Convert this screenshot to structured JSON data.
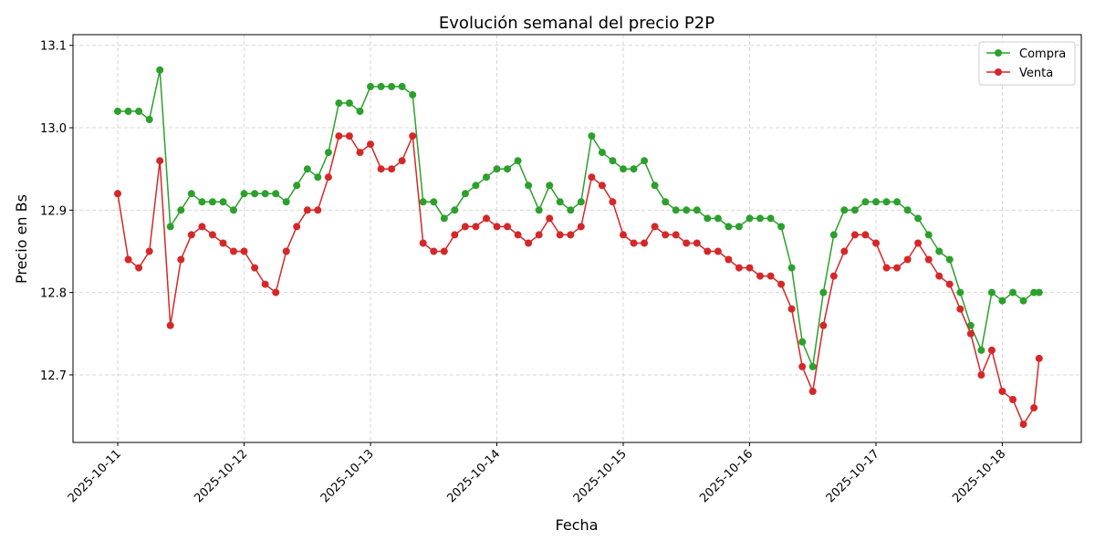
{
  "chart_data": {
    "type": "line",
    "title": "Evolución semanal del precio P2P",
    "xlabel": "Fecha",
    "ylabel": "Precio en Bs",
    "xlim": [
      "2025-10-10 15:30",
      "2025-10-18 15:00"
    ],
    "ylim": [
      12.618,
      13.113
    ],
    "x_ticks": [
      "2025-10-11",
      "2025-10-12",
      "2025-10-13",
      "2025-10-14",
      "2025-10-15",
      "2025-10-16",
      "2025-10-17",
      "2025-10-18"
    ],
    "y_ticks": [
      "12.7",
      "12.8",
      "12.9",
      "13.0",
      "13.1"
    ],
    "grid": true,
    "legend": "top-right",
    "x": [
      "2025-10-11 00:00",
      "2025-10-11 02:00",
      "2025-10-11 04:00",
      "2025-10-11 06:00",
      "2025-10-11 08:00",
      "2025-10-11 10:00",
      "2025-10-11 12:00",
      "2025-10-11 14:00",
      "2025-10-11 16:00",
      "2025-10-11 18:00",
      "2025-10-11 20:00",
      "2025-10-11 22:00",
      "2025-10-12 00:00",
      "2025-10-12 02:00",
      "2025-10-12 04:00",
      "2025-10-12 06:00",
      "2025-10-12 08:00",
      "2025-10-12 10:00",
      "2025-10-12 12:00",
      "2025-10-12 14:00",
      "2025-10-12 16:00",
      "2025-10-12 18:00",
      "2025-10-12 20:00",
      "2025-10-12 22:00",
      "2025-10-13 00:00",
      "2025-10-13 02:00",
      "2025-10-13 04:00",
      "2025-10-13 06:00",
      "2025-10-13 08:00",
      "2025-10-13 10:00",
      "2025-10-13 12:00",
      "2025-10-13 14:00",
      "2025-10-13 16:00",
      "2025-10-13 18:00",
      "2025-10-13 20:00",
      "2025-10-13 22:00",
      "2025-10-14 00:00",
      "2025-10-14 02:00",
      "2025-10-14 04:00",
      "2025-10-14 06:00",
      "2025-10-14 08:00",
      "2025-10-14 10:00",
      "2025-10-14 12:00",
      "2025-10-14 14:00",
      "2025-10-14 16:00",
      "2025-10-14 18:00",
      "2025-10-14 20:00",
      "2025-10-14 22:00",
      "2025-10-15 00:00",
      "2025-10-15 02:00",
      "2025-10-15 04:00",
      "2025-10-15 06:00",
      "2025-10-15 08:00",
      "2025-10-15 10:00",
      "2025-10-15 12:00",
      "2025-10-15 14:00",
      "2025-10-15 16:00",
      "2025-10-15 18:00",
      "2025-10-15 20:00",
      "2025-10-15 22:00",
      "2025-10-16 00:00",
      "2025-10-16 02:00",
      "2025-10-16 04:00",
      "2025-10-16 06:00",
      "2025-10-16 08:00",
      "2025-10-16 10:00",
      "2025-10-16 12:00",
      "2025-10-16 14:00",
      "2025-10-16 16:00",
      "2025-10-16 18:00",
      "2025-10-16 20:00",
      "2025-10-16 22:00",
      "2025-10-17 00:00",
      "2025-10-17 02:00",
      "2025-10-17 04:00",
      "2025-10-17 06:00",
      "2025-10-17 08:00",
      "2025-10-17 10:00",
      "2025-10-17 12:00",
      "2025-10-17 14:00",
      "2025-10-17 16:00",
      "2025-10-17 18:00",
      "2025-10-17 20:00",
      "2025-10-17 22:00",
      "2025-10-18 00:00",
      "2025-10-18 02:00",
      "2025-10-18 04:00",
      "2025-10-18 06:00",
      "2025-10-18 07:00"
    ],
    "series": [
      {
        "name": "Compra",
        "color": "#2ca02c",
        "values": [
          13.02,
          13.02,
          13.02,
          13.01,
          13.07,
          12.88,
          12.9,
          12.92,
          12.91,
          12.91,
          12.91,
          12.9,
          12.92,
          12.92,
          12.92,
          12.92,
          12.91,
          12.93,
          12.95,
          12.94,
          12.97,
          13.03,
          13.03,
          13.02,
          13.05,
          13.05,
          13.05,
          13.05,
          13.04,
          12.91,
          12.91,
          12.89,
          12.9,
          12.92,
          12.93,
          12.94,
          12.95,
          12.95,
          12.96,
          12.93,
          12.9,
          12.93,
          12.91,
          12.9,
          12.91,
          12.99,
          12.97,
          12.96,
          12.95,
          12.95,
          12.96,
          12.93,
          12.91,
          12.9,
          12.9,
          12.9,
          12.89,
          12.89,
          12.88,
          12.88,
          12.89,
          12.89,
          12.89,
          12.88,
          12.83,
          12.74,
          12.71,
          12.8,
          12.87,
          12.9,
          12.9,
          12.91,
          12.91,
          12.91,
          12.91,
          12.9,
          12.89,
          12.87,
          12.85,
          12.84,
          12.8,
          12.76,
          12.73,
          12.8,
          12.79,
          12.8,
          12.79,
          12.8,
          12.8
        ]
      },
      {
        "name": "Venta",
        "color": "#d62728",
        "values": [
          12.92,
          12.84,
          12.83,
          12.85,
          12.96,
          12.76,
          12.84,
          12.87,
          12.88,
          12.87,
          12.86,
          12.85,
          12.85,
          12.83,
          12.81,
          12.8,
          12.85,
          12.88,
          12.9,
          12.9,
          12.94,
          12.99,
          12.99,
          12.97,
          12.98,
          12.95,
          12.95,
          12.96,
          12.99,
          12.86,
          12.85,
          12.85,
          12.87,
          12.88,
          12.88,
          12.89,
          12.88,
          12.88,
          12.87,
          12.86,
          12.87,
          12.89,
          12.87,
          12.87,
          12.88,
          12.94,
          12.93,
          12.91,
          12.87,
          12.86,
          12.86,
          12.88,
          12.87,
          12.87,
          12.86,
          12.86,
          12.85,
          12.85,
          12.84,
          12.83,
          12.83,
          12.82,
          12.82,
          12.81,
          12.78,
          12.71,
          12.68,
          12.76,
          12.82,
          12.85,
          12.87,
          12.87,
          12.86,
          12.83,
          12.83,
          12.84,
          12.86,
          12.84,
          12.82,
          12.81,
          12.78,
          12.75,
          12.7,
          12.73,
          12.68,
          12.67,
          12.64,
          12.66,
          12.72
        ]
      }
    ]
  }
}
